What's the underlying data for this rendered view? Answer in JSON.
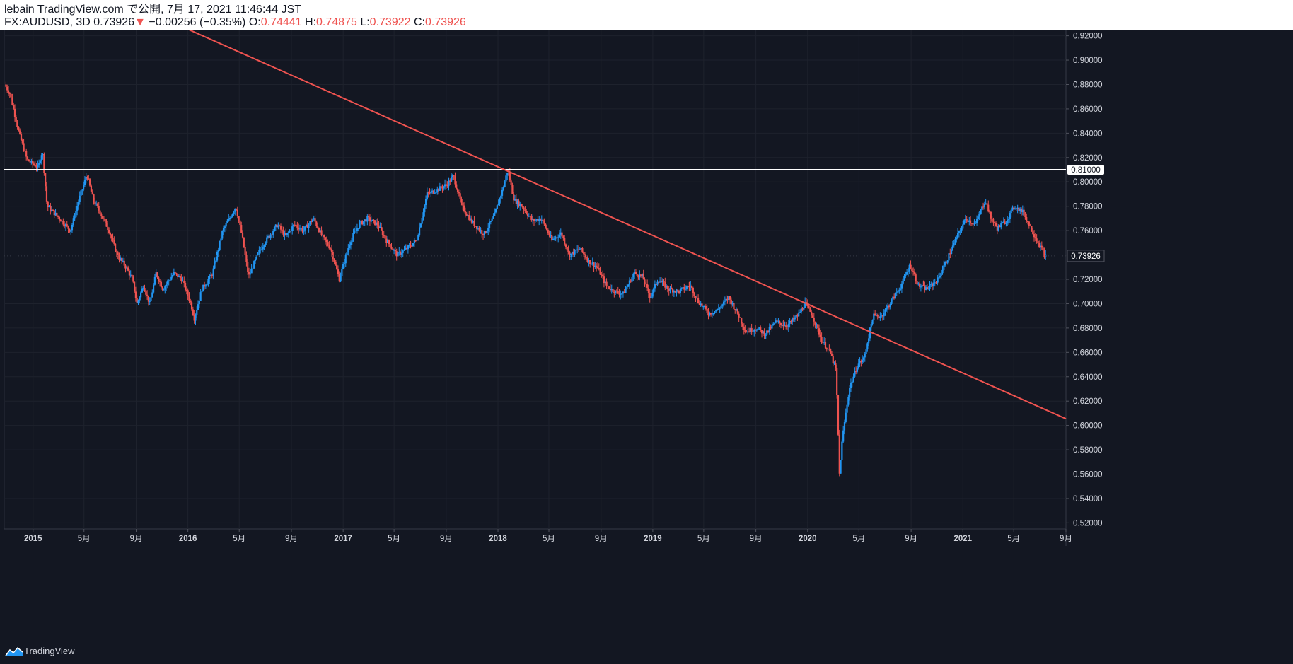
{
  "header": {
    "publish_line": "lebain TradingView.com で公開, 7月 17, 2021 11:46:44 JST",
    "symbol": "FX:AUDUSD, 3D",
    "last": "0.73926",
    "arrow": "▼",
    "change": "−0.00256 (−0.35%)",
    "o_label": "O:",
    "o_value": "0.74441",
    "h_label": "H:",
    "h_value": "0.74875",
    "l_label": "L:",
    "l_value": "0.73922",
    "c_label": "C:",
    "c_value": "0.73926"
  },
  "footer": {
    "brand": "TradingView"
  },
  "colors": {
    "background": "#131722",
    "up": "#2196f3",
    "down": "#ef5350",
    "trendline": "#ef5350",
    "level": "#ffffff"
  },
  "chart_data": {
    "type": "candlestick",
    "symbol": "FX:AUDUSD",
    "interval": "3D",
    "y_axis": {
      "range": [
        0.515,
        0.925
      ],
      "ticks": [
        "0.92000",
        "0.90000",
        "0.88000",
        "0.86000",
        "0.84000",
        "0.82000",
        "0.80000",
        "0.78000",
        "0.76000",
        "0.74000",
        "0.72000",
        "0.70000",
        "0.68000",
        "0.66000",
        "0.64000",
        "0.62000",
        "0.60000",
        "0.58000",
        "0.56000",
        "0.54000",
        "0.52000"
      ]
    },
    "x_axis": {
      "range": [
        "2014-10-25",
        "2021-09-01"
      ],
      "ticks": [
        {
          "date": "2015-01-01",
          "label": "2015"
        },
        {
          "date": "2015-05-01",
          "label": "5月"
        },
        {
          "date": "2015-09-01",
          "label": "9月"
        },
        {
          "date": "2016-01-01",
          "label": "2016"
        },
        {
          "date": "2016-05-01",
          "label": "5月"
        },
        {
          "date": "2016-09-01",
          "label": "9月"
        },
        {
          "date": "2017-01-01",
          "label": "2017"
        },
        {
          "date": "2017-05-01",
          "label": "5月"
        },
        {
          "date": "2017-09-01",
          "label": "9月"
        },
        {
          "date": "2018-01-01",
          "label": "2018"
        },
        {
          "date": "2018-05-01",
          "label": "5月"
        },
        {
          "date": "2018-09-01",
          "label": "9月"
        },
        {
          "date": "2019-01-01",
          "label": "2019"
        },
        {
          "date": "2019-05-01",
          "label": "5月"
        },
        {
          "date": "2019-09-01",
          "label": "9月"
        },
        {
          "date": "2020-01-01",
          "label": "2020"
        },
        {
          "date": "2020-05-01",
          "label": "5月"
        },
        {
          "date": "2020-09-01",
          "label": "9月"
        },
        {
          "date": "2021-01-01",
          "label": "2021"
        },
        {
          "date": "2021-05-01",
          "label": "5月"
        },
        {
          "date": "2021-09-01",
          "label": "9月"
        }
      ]
    },
    "price_path": [
      [
        "2014-10-28",
        0.88
      ],
      [
        "2014-11-10",
        0.872
      ],
      [
        "2014-12-01",
        0.84
      ],
      [
        "2014-12-20",
        0.818
      ],
      [
        "2015-01-15",
        0.812
      ],
      [
        "2015-01-25",
        0.826
      ],
      [
        "2015-02-05",
        0.78
      ],
      [
        "2015-03-01",
        0.772
      ],
      [
        "2015-04-01",
        0.76
      ],
      [
        "2015-04-25",
        0.79
      ],
      [
        "2015-05-10",
        0.806
      ],
      [
        "2015-05-25",
        0.785
      ],
      [
        "2015-06-10",
        0.775
      ],
      [
        "2015-07-01",
        0.76
      ],
      [
        "2015-07-20",
        0.74
      ],
      [
        "2015-08-10",
        0.73
      ],
      [
        "2015-08-25",
        0.72
      ],
      [
        "2015-09-05",
        0.7
      ],
      [
        "2015-09-20",
        0.715
      ],
      [
        "2015-10-05",
        0.7
      ],
      [
        "2015-10-20",
        0.725
      ],
      [
        "2015-11-05",
        0.712
      ],
      [
        "2015-12-01",
        0.725
      ],
      [
        "2015-12-20",
        0.72
      ],
      [
        "2016-01-10",
        0.7
      ],
      [
        "2016-01-18",
        0.688
      ],
      [
        "2016-02-05",
        0.712
      ],
      [
        "2016-03-01",
        0.725
      ],
      [
        "2016-03-25",
        0.76
      ],
      [
        "2016-04-10",
        0.77
      ],
      [
        "2016-04-25",
        0.78
      ],
      [
        "2016-05-10",
        0.755
      ],
      [
        "2016-05-25",
        0.722
      ],
      [
        "2016-06-15",
        0.74
      ],
      [
        "2016-07-01",
        0.75
      ],
      [
        "2016-08-01",
        0.765
      ],
      [
        "2016-08-20",
        0.755
      ],
      [
        "2016-09-10",
        0.765
      ],
      [
        "2016-10-01",
        0.76
      ],
      [
        "2016-10-25",
        0.77
      ],
      [
        "2016-11-15",
        0.755
      ],
      [
        "2016-12-05",
        0.745
      ],
      [
        "2016-12-25",
        0.72
      ],
      [
        "2017-01-20",
        0.752
      ],
      [
        "2017-02-10",
        0.765
      ],
      [
        "2017-03-01",
        0.77
      ],
      [
        "2017-03-25",
        0.765
      ],
      [
        "2017-04-15",
        0.752
      ],
      [
        "2017-05-10",
        0.74
      ],
      [
        "2017-06-01",
        0.745
      ],
      [
        "2017-06-25",
        0.752
      ],
      [
        "2017-07-20",
        0.79
      ],
      [
        "2017-08-10",
        0.793
      ],
      [
        "2017-09-05",
        0.798
      ],
      [
        "2017-09-20",
        0.805
      ],
      [
        "2017-10-10",
        0.78
      ],
      [
        "2017-11-01",
        0.768
      ],
      [
        "2017-12-01",
        0.757
      ],
      [
        "2017-12-25",
        0.772
      ],
      [
        "2018-01-15",
        0.795
      ],
      [
        "2018-01-26",
        0.81
      ],
      [
        "2018-02-10",
        0.785
      ],
      [
        "2018-03-01",
        0.78
      ],
      [
        "2018-03-25",
        0.768
      ],
      [
        "2018-04-15",
        0.77
      ],
      [
        "2018-05-10",
        0.752
      ],
      [
        "2018-06-01",
        0.758
      ],
      [
        "2018-06-20",
        0.74
      ],
      [
        "2018-07-15",
        0.745
      ],
      [
        "2018-08-05",
        0.735
      ],
      [
        "2018-08-25",
        0.73
      ],
      [
        "2018-09-15",
        0.715
      ],
      [
        "2018-10-05",
        0.71
      ],
      [
        "2018-10-25",
        0.708
      ],
      [
        "2018-11-20",
        0.725
      ],
      [
        "2018-12-10",
        0.722
      ],
      [
        "2018-12-28",
        0.705
      ],
      [
        "2019-01-15",
        0.72
      ],
      [
        "2019-02-10",
        0.712
      ],
      [
        "2019-03-05",
        0.71
      ],
      [
        "2019-04-01",
        0.715
      ],
      [
        "2019-04-20",
        0.702
      ],
      [
        "2019-05-15",
        0.692
      ],
      [
        "2019-06-05",
        0.695
      ],
      [
        "2019-07-01",
        0.705
      ],
      [
        "2019-07-25",
        0.69
      ],
      [
        "2019-08-10",
        0.677
      ],
      [
        "2019-09-05",
        0.68
      ],
      [
        "2019-09-25",
        0.675
      ],
      [
        "2019-10-20",
        0.685
      ],
      [
        "2019-11-15",
        0.682
      ],
      [
        "2019-12-10",
        0.69
      ],
      [
        "2019-12-28",
        0.7
      ],
      [
        "2020-01-15",
        0.69
      ],
      [
        "2020-02-05",
        0.67
      ],
      [
        "2020-02-25",
        0.66
      ],
      [
        "2020-03-10",
        0.645
      ],
      [
        "2020-03-18",
        0.56
      ],
      [
        "2020-03-25",
        0.59
      ],
      [
        "2020-04-10",
        0.63
      ],
      [
        "2020-04-30",
        0.65
      ],
      [
        "2020-05-15",
        0.655
      ],
      [
        "2020-06-05",
        0.69
      ],
      [
        "2020-06-25",
        0.69
      ],
      [
        "2020-07-15",
        0.7
      ],
      [
        "2020-08-10",
        0.715
      ],
      [
        "2020-09-01",
        0.732
      ],
      [
        "2020-09-20",
        0.715
      ],
      [
        "2020-10-10",
        0.712
      ],
      [
        "2020-11-05",
        0.72
      ],
      [
        "2020-11-25",
        0.735
      ],
      [
        "2020-12-20",
        0.755
      ],
      [
        "2021-01-10",
        0.77
      ],
      [
        "2021-02-01",
        0.765
      ],
      [
        "2021-02-25",
        0.785
      ],
      [
        "2021-03-10",
        0.77
      ],
      [
        "2021-03-25",
        0.762
      ],
      [
        "2021-04-15",
        0.768
      ],
      [
        "2021-05-05",
        0.78
      ],
      [
        "2021-05-25",
        0.775
      ],
      [
        "2021-06-15",
        0.76
      ],
      [
        "2021-06-30",
        0.75
      ],
      [
        "2021-07-16",
        0.739
      ]
    ],
    "annotations": [
      {
        "type": "horizontal_line",
        "price": 0.81,
        "label": "0.81000"
      },
      {
        "type": "trendline",
        "from": [
          "2015-12-15",
          0.928
        ],
        "to": [
          "2021-09-01",
          0.6055
        ]
      },
      {
        "type": "last_price",
        "price": 0.73926,
        "label": "0.73926"
      }
    ],
    "grid": true,
    "legend": "none"
  }
}
